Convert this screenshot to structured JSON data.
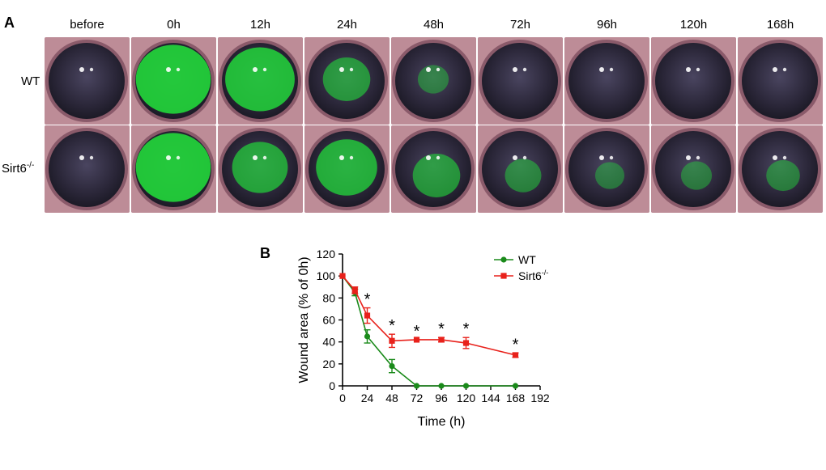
{
  "panel_a": {
    "letter": "A",
    "columns": [
      "before",
      "0h",
      "12h",
      "24h",
      "48h",
      "72h",
      "96h",
      "120h",
      "168h"
    ],
    "rows": [
      {
        "label_main": "WT",
        "label_sup": ""
      },
      {
        "label_main": "Sirt6",
        "label_sup": "-/-"
      }
    ],
    "stain_levels": {
      "WT": [
        0.0,
        0.95,
        0.85,
        0.45,
        0.15,
        0.0,
        0.0,
        0.0,
        0.0
      ],
      "Sirt6": [
        0.0,
        0.95,
        0.6,
        0.7,
        0.45,
        0.25,
        0.12,
        0.15,
        0.2
      ]
    },
    "colors": {
      "stain": "#22d43a",
      "eye_dark": "#2a2638",
      "rim": "#8a5a6a"
    }
  },
  "chart_data": {
    "type": "line",
    "panel_letter": "B",
    "xlabel": "Time (h)",
    "ylabel": "Wound area (% of 0h)",
    "xlim": [
      0,
      192
    ],
    "ylim": [
      0,
      120
    ],
    "xticks": [
      "0",
      "24",
      "48",
      "72",
      "96",
      "120",
      "144",
      "168",
      "192"
    ],
    "yticks": [
      "0",
      "20",
      "40",
      "60",
      "80",
      "100",
      "120"
    ],
    "series": [
      {
        "name": "WT",
        "color": "#1a8a1a",
        "marker": "circle",
        "x": [
          0,
          12,
          24,
          48,
          72,
          96,
          120,
          168
        ],
        "y": [
          100,
          85,
          45,
          18,
          0,
          0,
          0,
          0
        ],
        "err": [
          0,
          3,
          6,
          6,
          0,
          0,
          0,
          0
        ]
      },
      {
        "name": "Sirt6",
        "name_sup": "-/-",
        "color": "#e8211b",
        "marker": "square",
        "x": [
          0,
          12,
          24,
          48,
          72,
          96,
          120,
          168
        ],
        "y": [
          100,
          87,
          64,
          41,
          42,
          42,
          39,
          28
        ],
        "err": [
          0,
          3,
          7,
          6,
          0,
          2,
          5,
          2
        ]
      }
    ],
    "significance": {
      "symbol": "*",
      "x": [
        24,
        48,
        72,
        96,
        120,
        168
      ]
    },
    "legend_position": "top-right"
  }
}
